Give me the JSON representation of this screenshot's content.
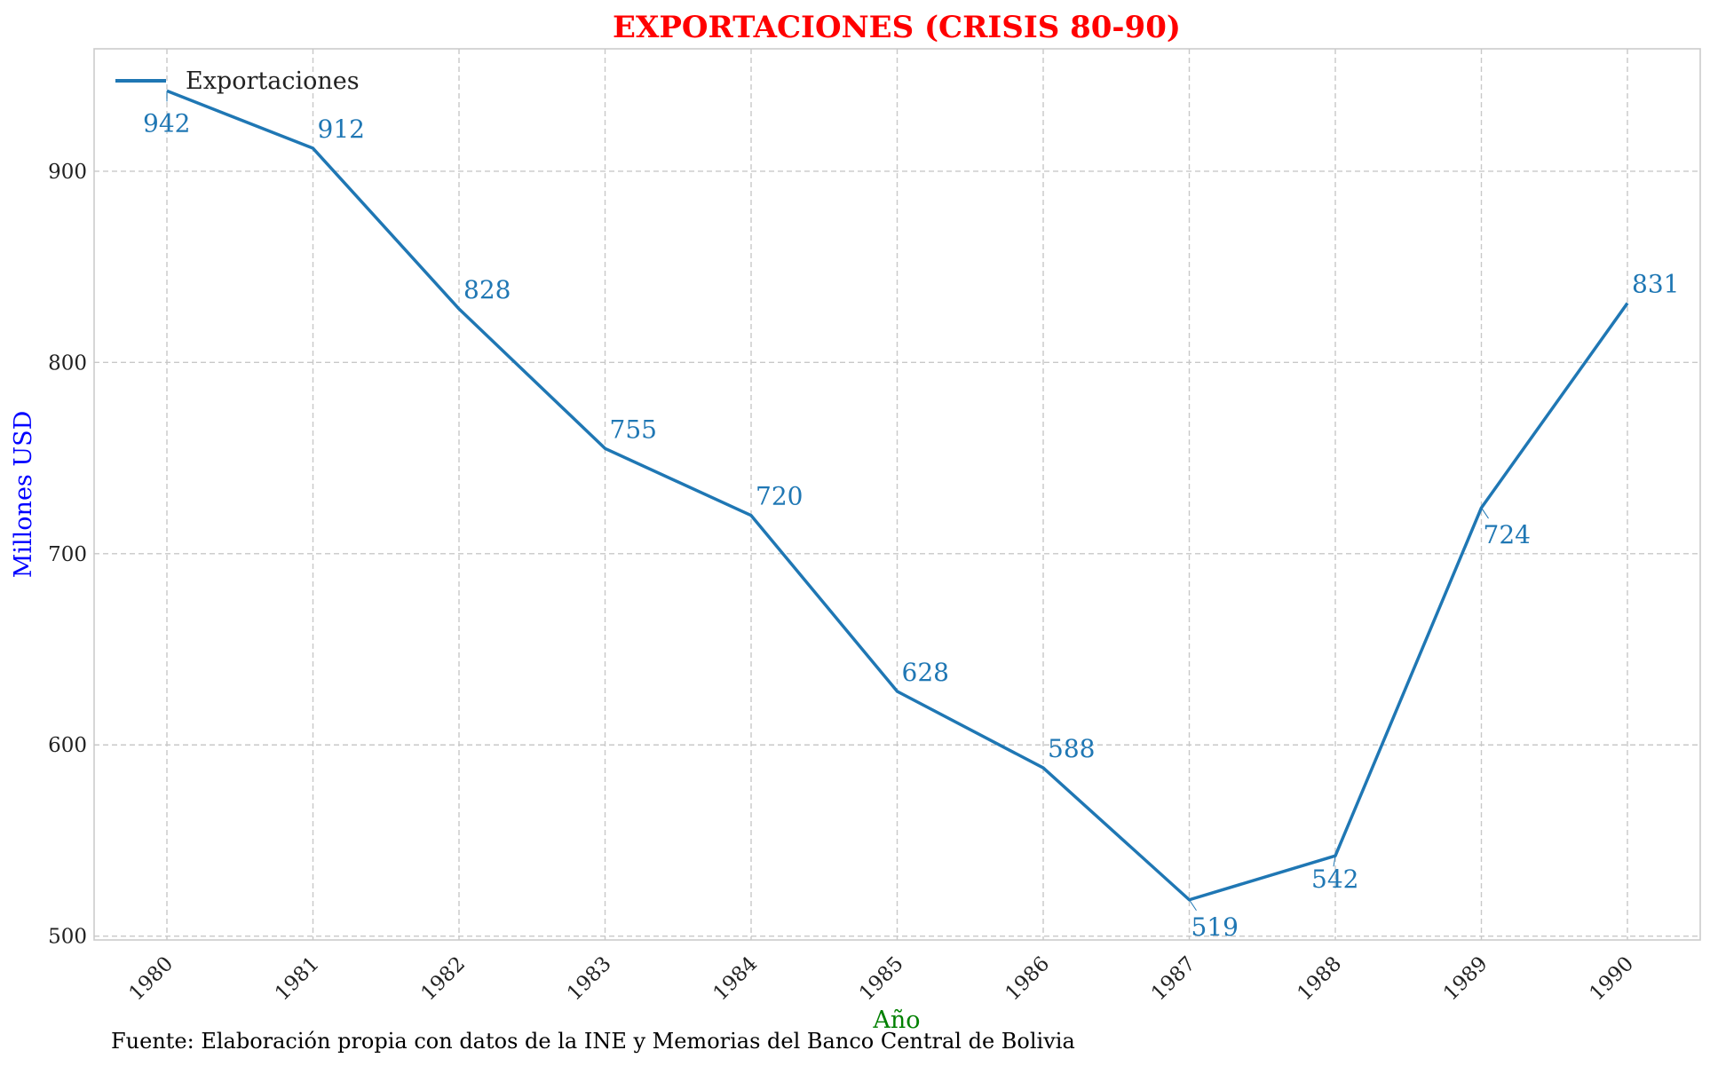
{
  "colors": {
    "title": "#ff0000",
    "ylabel": "#0000ff",
    "xlabel": "#008000",
    "series": "#1f77b4",
    "grid": "#c8c8c8",
    "frame": "#cccccc"
  },
  "chart_data": {
    "type": "line",
    "title": "EXPORTACIONES (CRISIS 80-90)",
    "xlabel": "Año",
    "ylabel": "Millones USD",
    "categories": [
      "1980",
      "1981",
      "1982",
      "1983",
      "1984",
      "1985",
      "1986",
      "1987",
      "1988",
      "1989",
      "1990"
    ],
    "series": [
      {
        "name": "Exportaciones",
        "values": [
          942,
          912,
          828,
          755,
          720,
          628,
          588,
          519,
          542,
          724,
          831
        ]
      }
    ],
    "ylim": [
      498,
      964
    ],
    "yticks": [
      500,
      600,
      700,
      800,
      900
    ],
    "grid": true,
    "legend_position": "top-left",
    "source_note": "Fuente: Elaboración propia con datos de la INE y Memorias del Banco Central de Bolivia"
  }
}
